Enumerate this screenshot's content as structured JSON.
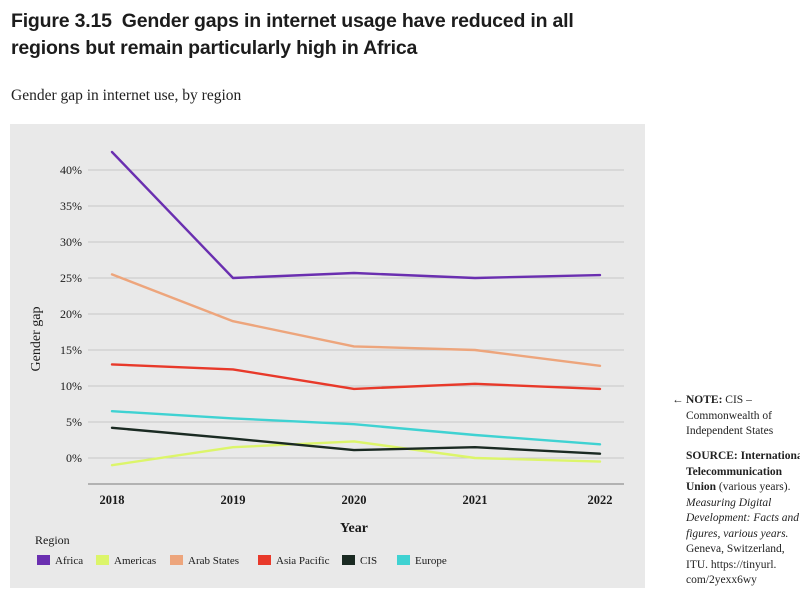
{
  "figure": {
    "number": "Figure 3.15",
    "title": "Gender gaps in internet usage have reduced in all regions but remain particularly high in Africa",
    "subtitle": "Gender gap in internet use, by region"
  },
  "chart_data": {
    "type": "line",
    "title": "Gender gap in internet use, by region",
    "xlabel": "Year",
    "ylabel": "Gender gap",
    "x": [
      "2018",
      "2019",
      "2020",
      "2021",
      "2022"
    ],
    "ylim": [
      -3,
      43
    ],
    "yticks": [
      0,
      5,
      10,
      15,
      20,
      25,
      30,
      35,
      40
    ],
    "ytick_labels": [
      "0%",
      "5%",
      "10%",
      "15%",
      "20%",
      "25%",
      "30%",
      "35%",
      "40%"
    ],
    "grid": "horizontal",
    "legend_title": "Region",
    "legend_position": "bottom",
    "series": [
      {
        "name": "Africa",
        "color": "#6a2fb0",
        "values": [
          42.5,
          25.0,
          25.7,
          25.0,
          25.4
        ]
      },
      {
        "name": "Americas",
        "color": "#dcf56a",
        "values": [
          -1.0,
          1.5,
          2.3,
          0.0,
          -0.5
        ]
      },
      {
        "name": "Arab States",
        "color": "#eda57c",
        "values": [
          25.5,
          19.0,
          15.5,
          15.0,
          12.8
        ]
      },
      {
        "name": "Asia Pacific",
        "color": "#e8392a",
        "values": [
          13.0,
          12.3,
          9.6,
          10.3,
          9.6
        ]
      },
      {
        "name": "CIS",
        "color": "#1a2a22",
        "values": [
          4.2,
          2.7,
          1.1,
          1.5,
          0.6
        ]
      },
      {
        "name": "Europe",
        "color": "#3fd2d2",
        "values": [
          6.5,
          5.5,
          4.7,
          3.2,
          1.9
        ]
      }
    ]
  },
  "note": {
    "arrow": "←",
    "label": "NOTE:",
    "text": "CIS – Commonwealth of Independent States"
  },
  "source": {
    "label": "SOURCE: International Telecommunication Union",
    "text1": "(various years).",
    "italic": "Measuring Digital Development: Facts and figures, various years.",
    "text2": "Geneva, Switzerland, ITU. https://tinyurl. com/2yexx6wy"
  }
}
